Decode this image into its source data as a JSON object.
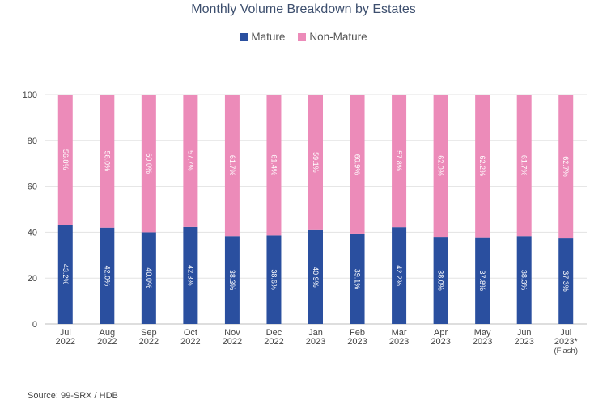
{
  "colors": {
    "mature": "#2a4f9f",
    "non_mature": "#ec8bb9",
    "grid": "#e3e3e3",
    "axis": "#bdbdbd",
    "text": "#444444"
  },
  "legend": {
    "mature": "Mature",
    "non_mature": "Non-Mature"
  },
  "source": "Source: 99-SRX / HDB",
  "chart_data": {
    "type": "bar",
    "stacked": true,
    "title": "Monthly Volume Breakdown by Estates",
    "categories": [
      [
        "Jul",
        "2022"
      ],
      [
        "Aug",
        "2022"
      ],
      [
        "Sep",
        "2022"
      ],
      [
        "Oct",
        "2022"
      ],
      [
        "Nov",
        "2022"
      ],
      [
        "Dec",
        "2022"
      ],
      [
        "Jan",
        "2023"
      ],
      [
        "Feb",
        "2023"
      ],
      [
        "Mar",
        "2023"
      ],
      [
        "Apr",
        "2023"
      ],
      [
        "May",
        "2023"
      ],
      [
        "Jun",
        "2023"
      ],
      [
        "Jul",
        "2023*",
        "(Flash)"
      ]
    ],
    "series": [
      {
        "name": "Mature",
        "values": [
          43.2,
          42.0,
          40.0,
          42.3,
          38.3,
          38.6,
          40.9,
          39.1,
          42.2,
          38.0,
          37.8,
          38.3,
          37.3
        ]
      },
      {
        "name": "Non-Mature",
        "values": [
          56.8,
          58.0,
          60.0,
          57.7,
          61.7,
          61.4,
          59.1,
          60.9,
          57.8,
          62.0,
          62.2,
          61.7,
          62.7
        ]
      }
    ],
    "ylim": [
      0,
      100
    ],
    "yticks": [
      0,
      20,
      40,
      60,
      80,
      100
    ],
    "xlabel": "",
    "ylabel": "",
    "grid": true,
    "legend_position": "top"
  }
}
